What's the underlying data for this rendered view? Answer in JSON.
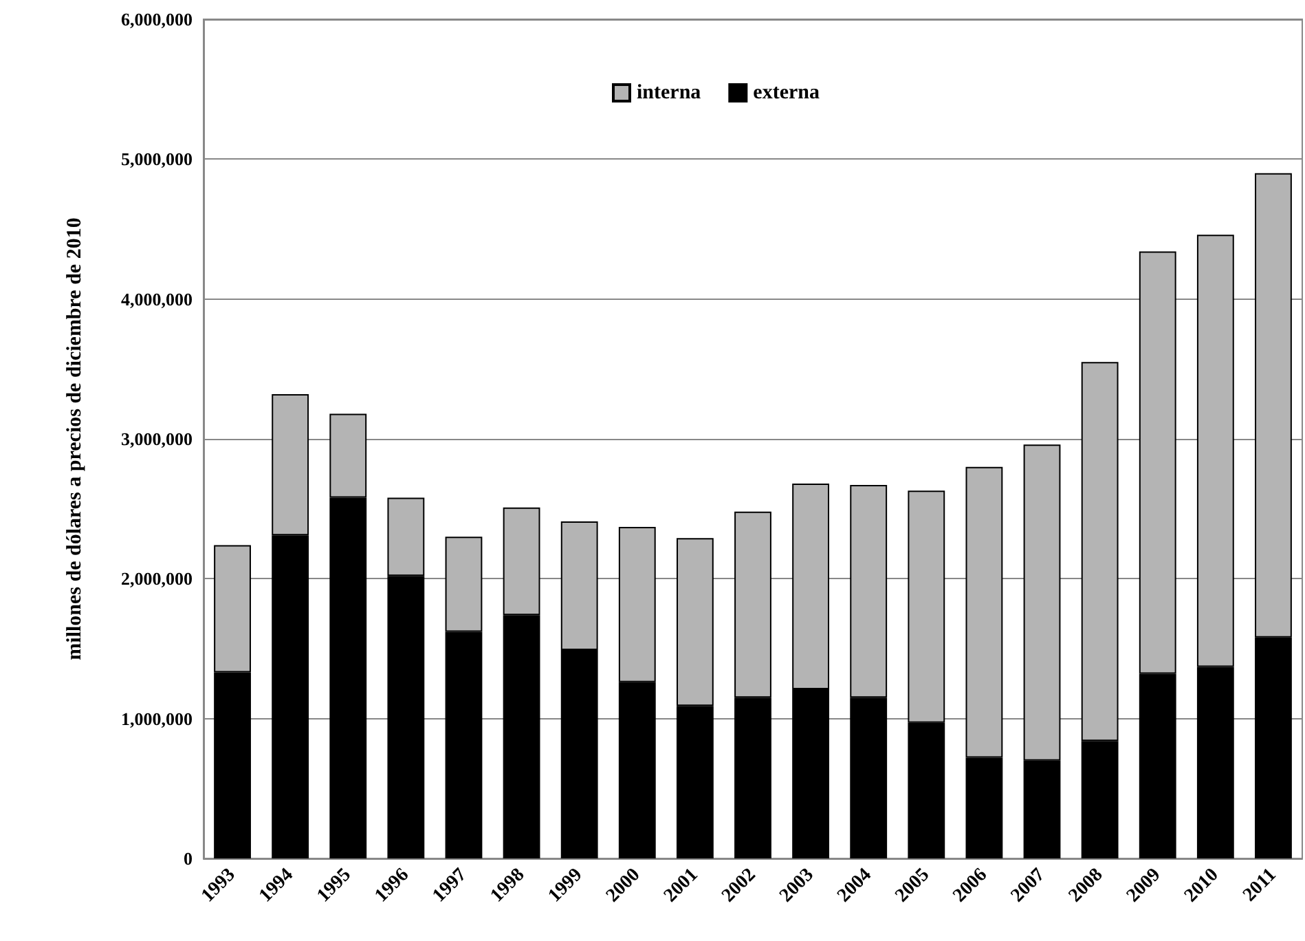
{
  "chart_data": {
    "type": "bar",
    "stacked": true,
    "ylabel": "millones de dólares a precios de diciembre de 2010",
    "categories": [
      "1993",
      "1994",
      "1995",
      "1996",
      "1997",
      "1998",
      "1999",
      "2000",
      "2001",
      "2002",
      "2003",
      "2004",
      "2005",
      "2006",
      "2007",
      "2008",
      "2009",
      "2010",
      "2011"
    ],
    "series": [
      {
        "name": "externa",
        "color": "#000000",
        "values": [
          1330000,
          2310000,
          2580000,
          2020000,
          1620000,
          1740000,
          1490000,
          1260000,
          1090000,
          1150000,
          1210000,
          1150000,
          970000,
          720000,
          700000,
          840000,
          1320000,
          1370000,
          1580000
        ]
      },
      {
        "name": "interna",
        "color": "#b4b4b4",
        "values": [
          910000,
          1010000,
          600000,
          560000,
          680000,
          770000,
          920000,
          1110000,
          1200000,
          1330000,
          1470000,
          1520000,
          1660000,
          2080000,
          2260000,
          2710000,
          3020000,
          3090000,
          3320000
        ]
      }
    ],
    "ylim": [
      0,
      6000000
    ],
    "yticks": [
      0,
      {
        "value": 1000000,
        "label": "1,000,000"
      },
      {
        "value": 2000000,
        "label": "2,000,000"
      },
      {
        "value": 3000000,
        "label": "3,000,000"
      },
      {
        "value": 4000000,
        "label": "4,000,000"
      },
      {
        "value": 5000000,
        "label": "5,000,000"
      },
      {
        "value": 6000000,
        "label": "6,000,000"
      }
    ],
    "grid": "y",
    "legend": "top"
  }
}
